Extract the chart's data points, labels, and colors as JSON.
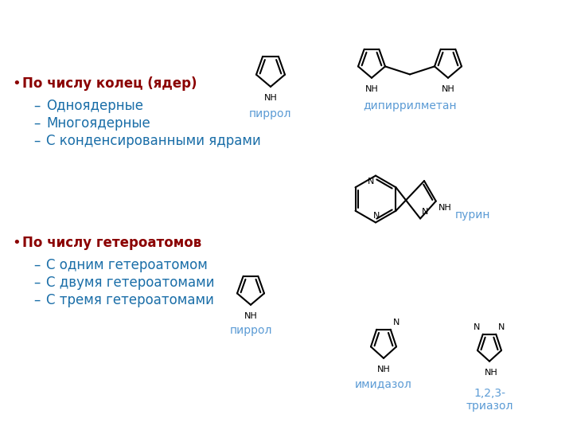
{
  "bg_color": "#ffffff",
  "bullet_color": "#8B0000",
  "sub_color": "#1a6ea8",
  "label_color": "#5b9bd5",
  "struct_color": "#000000",
  "bullet1": "По числу колец (ядер)",
  "sub1_1": "Одноядерные",
  "sub1_2": "Многоядерные",
  "sub1_3": "С конденсированными ядрами",
  "bullet2": "По числу гетероатомов",
  "sub2_1": "С одним гетероатомом",
  "sub2_2": "С двумя гетероатомами",
  "sub2_3": "С тремя гетероатомами",
  "label_pyrrol1": "пиррол",
  "label_dipyrryl": "дипиррилметан",
  "label_purin": "пурин",
  "label_pyrrol2": "пиррол",
  "label_imidazol": "имидазол",
  "label_triazol": "1,2,3-\nтриазол"
}
